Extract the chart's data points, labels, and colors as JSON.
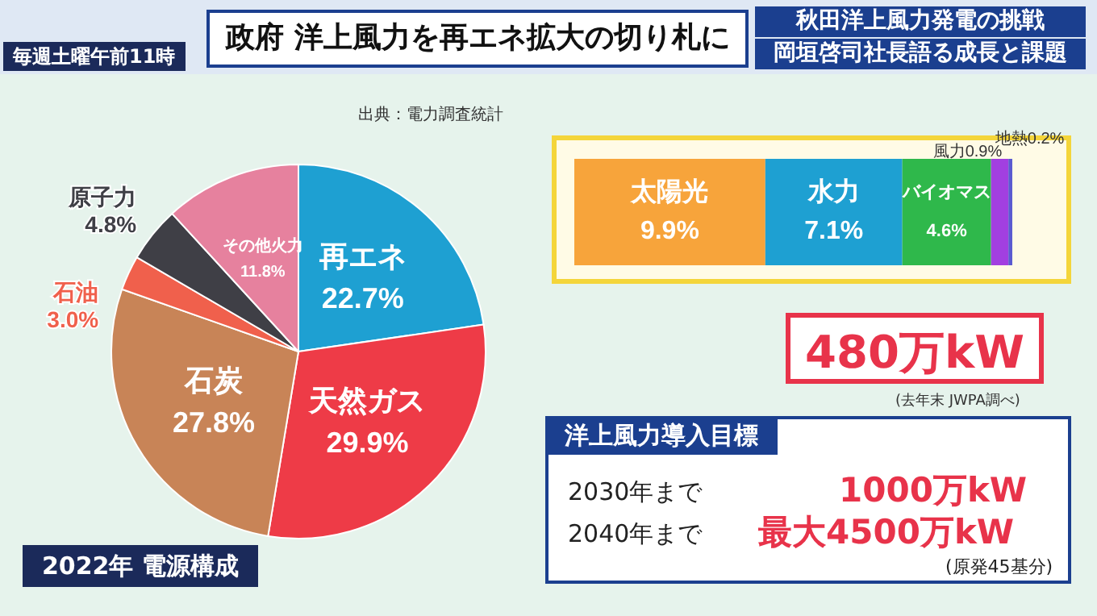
{
  "chart_data": [
    {
      "type": "pie",
      "title": "政府 洋上風力を再エネ拡大の切り札に",
      "categories": [
        "再エネ",
        "天然ガス",
        "石炭",
        "石油",
        "原子力",
        "その他火力"
      ],
      "values": [
        22.7,
        29.9,
        27.8,
        3.0,
        4.8,
        11.8
      ],
      "value_labels": [
        "22.7%",
        "29.9%",
        "27.8%",
        "3.0%",
        "4.8%",
        "11.8%"
      ],
      "colors": [
        "#1ea0d2",
        "#ee3b47",
        "#c88457",
        "#f0604c",
        "#3f3f46",
        "#e6819e"
      ],
      "legend": false,
      "annotations": [
        "毎週土曜午前11時",
        "秋田洋上風力発電の挑戦",
        "岡垣啓司社長語る成長と課題",
        "出典：電力調査統計",
        "2022年 電源構成"
      ]
    },
    {
      "type": "bar",
      "orientation": "horizontal",
      "stacked": true,
      "categories": [
        null
      ],
      "series": [
        {
          "name": "太陽光",
          "color": "#f7a43b",
          "values": [
            9.9
          ],
          "value_labels": [
            "9.9%"
          ]
        },
        {
          "name": "水力",
          "color": "#1ea0d2",
          "values": [
            7.1
          ],
          "value_labels": [
            "7.1%"
          ]
        },
        {
          "name": "バイオマス",
          "color": "#2fb84b",
          "values": [
            4.6
          ],
          "value_labels": [
            "4.6%"
          ]
        },
        {
          "name": "風力",
          "color": "#a23fe0",
          "values": [
            0.9
          ],
          "value_labels": [
            "0.9%"
          ]
        },
        {
          "name": "地熱",
          "color": "#5a5ad0",
          "values": [
            0.2
          ],
          "value_labels": [
            "0.2%"
          ]
        }
      ],
      "legend": false,
      "annotations": [
        "480万kW",
        "(去年末 JWPA調べ)"
      ]
    },
    {
      "type": "other",
      "title": "洋上風力導入目標",
      "annotations": [
        "2030年まで",
        "1000万kW",
        "2040年まで",
        "最大4500万kW",
        "(原発45基分)"
      ]
    }
  ]
}
